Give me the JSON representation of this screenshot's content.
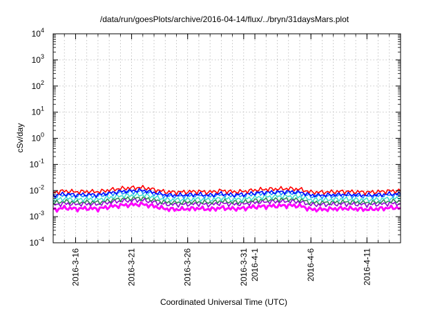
{
  "chart_data": {
    "type": "line",
    "title": "/data/run/goesPlots/archive/2016-04-14/flux/../bryn/31daysMars.plot",
    "xlabel": "Coordinated Universal Time (UTC)",
    "ylabel": "cSv/day",
    "yscale": "log",
    "ylim": [
      0.0001,
      10000
    ],
    "xlim": [
      "2016-03-14",
      "2016-04-14"
    ],
    "grid": true,
    "y_ticks": [
      {
        "value": 0.0001,
        "base": "10",
        "exp": "-4"
      },
      {
        "value": 0.001,
        "base": "10",
        "exp": "-3"
      },
      {
        "value": 0.01,
        "base": "10",
        "exp": "-2"
      },
      {
        "value": 0.1,
        "base": "10",
        "exp": "-1"
      },
      {
        "value": 1,
        "base": "10",
        "exp": "0"
      },
      {
        "value": 10,
        "base": "10",
        "exp": "1"
      },
      {
        "value": 100,
        "base": "10",
        "exp": "2"
      },
      {
        "value": 1000,
        "base": "10",
        "exp": "3"
      },
      {
        "value": 10000,
        "base": "10",
        "exp": "4"
      }
    ],
    "x_ticks": [
      {
        "date": "2016-03-16",
        "label": "2016-3-16"
      },
      {
        "date": "2016-03-21",
        "label": "2016-3-21"
      },
      {
        "date": "2016-03-26",
        "label": "2016-3-26"
      },
      {
        "date": "2016-03-31",
        "label": "2016-3-31"
      },
      {
        "date": "2016-04-01",
        "label": "2016-4-1"
      },
      {
        "date": "2016-04-06",
        "label": "2016-4-6"
      },
      {
        "date": "2016-04-11",
        "label": "2016-4-11"
      }
    ],
    "x": [
      "2016-03-14",
      "2016-03-15",
      "2016-03-16",
      "2016-03-17",
      "2016-03-18",
      "2016-03-19",
      "2016-03-20",
      "2016-03-21",
      "2016-03-22",
      "2016-03-23",
      "2016-03-24",
      "2016-03-25",
      "2016-03-26",
      "2016-03-27",
      "2016-03-28",
      "2016-03-29",
      "2016-03-30",
      "2016-03-31",
      "2016-04-01",
      "2016-04-02",
      "2016-04-03",
      "2016-04-04",
      "2016-04-05",
      "2016-04-06",
      "2016-04-07",
      "2016-04-08",
      "2016-04-09",
      "2016-04-10",
      "2016-04-11",
      "2016-04-12",
      "2016-04-13",
      "2016-04-14"
    ],
    "series": [
      {
        "color": "#ff00ff",
        "values": [
          0.0018,
          0.0022,
          0.002,
          0.0021,
          0.002,
          0.0024,
          0.0027,
          0.0029,
          0.003,
          0.0025,
          0.002,
          0.0019,
          0.002,
          0.0021,
          0.0019,
          0.0022,
          0.002,
          0.0021,
          0.0024,
          0.0025,
          0.0026,
          0.0027,
          0.0026,
          0.0019,
          0.0019,
          0.002,
          0.0021,
          0.002,
          0.0019,
          0.002,
          0.0022,
          0.0022
        ]
      },
      {
        "color": "#9400d3",
        "values": [
          0.0028,
          0.0032,
          0.003,
          0.0031,
          0.003,
          0.0035,
          0.004,
          0.0042,
          0.0043,
          0.0036,
          0.003,
          0.0029,
          0.003,
          0.0031,
          0.0029,
          0.0033,
          0.003,
          0.0031,
          0.0035,
          0.0037,
          0.0038,
          0.0039,
          0.0037,
          0.0029,
          0.0029,
          0.003,
          0.0031,
          0.003,
          0.0029,
          0.003,
          0.0032,
          0.0032
        ]
      },
      {
        "color": "#2e8b57",
        "values": [
          0.0034,
          0.0039,
          0.0036,
          0.0037,
          0.0036,
          0.0042,
          0.0048,
          0.0051,
          0.0052,
          0.0044,
          0.0036,
          0.0035,
          0.0036,
          0.0037,
          0.0035,
          0.004,
          0.0036,
          0.0037,
          0.0042,
          0.0045,
          0.0046,
          0.0047,
          0.0045,
          0.0035,
          0.0035,
          0.0036,
          0.0037,
          0.0036,
          0.0035,
          0.0036,
          0.0039,
          0.0039
        ]
      },
      {
        "color": "#40e0d0",
        "values": [
          0.0044,
          0.005,
          0.0046,
          0.0048,
          0.0046,
          0.0054,
          0.0062,
          0.0066,
          0.0068,
          0.0057,
          0.0046,
          0.0045,
          0.0046,
          0.0048,
          0.0045,
          0.0051,
          0.0046,
          0.0048,
          0.0054,
          0.0058,
          0.006,
          0.0061,
          0.0058,
          0.0045,
          0.0045,
          0.0046,
          0.0048,
          0.0046,
          0.0045,
          0.0046,
          0.005,
          0.005
        ]
      },
      {
        "color": "#1e90ff",
        "values": [
          0.006,
          0.0068,
          0.0063,
          0.0065,
          0.0063,
          0.0074,
          0.0084,
          0.009,
          0.0092,
          0.0077,
          0.0063,
          0.0061,
          0.0063,
          0.0065,
          0.0061,
          0.007,
          0.0063,
          0.0065,
          0.0074,
          0.0079,
          0.0081,
          0.0083,
          0.0079,
          0.0061,
          0.0061,
          0.0063,
          0.0065,
          0.0063,
          0.0061,
          0.0063,
          0.0068,
          0.0068
        ]
      },
      {
        "color": "#0000ff",
        "values": [
          0.0066,
          0.0075,
          0.0069,
          0.0072,
          0.0069,
          0.0081,
          0.0092,
          0.0099,
          0.0101,
          0.0085,
          0.0069,
          0.0067,
          0.0069,
          0.0072,
          0.0067,
          0.0077,
          0.0069,
          0.0072,
          0.0081,
          0.0087,
          0.0089,
          0.0091,
          0.0087,
          0.0067,
          0.0067,
          0.0069,
          0.0072,
          0.0069,
          0.0067,
          0.0069,
          0.0075,
          0.0075
        ]
      },
      {
        "color": "#ff0000",
        "values": [
          0.0085,
          0.0097,
          0.009,
          0.0093,
          0.009,
          0.0105,
          0.012,
          0.0128,
          0.0131,
          0.011,
          0.009,
          0.0087,
          0.009,
          0.0093,
          0.0087,
          0.01,
          0.009,
          0.0093,
          0.0105,
          0.0113,
          0.0116,
          0.0119,
          0.0113,
          0.0087,
          0.0087,
          0.009,
          0.0093,
          0.009,
          0.0087,
          0.009,
          0.0097,
          0.0097
        ]
      }
    ]
  }
}
